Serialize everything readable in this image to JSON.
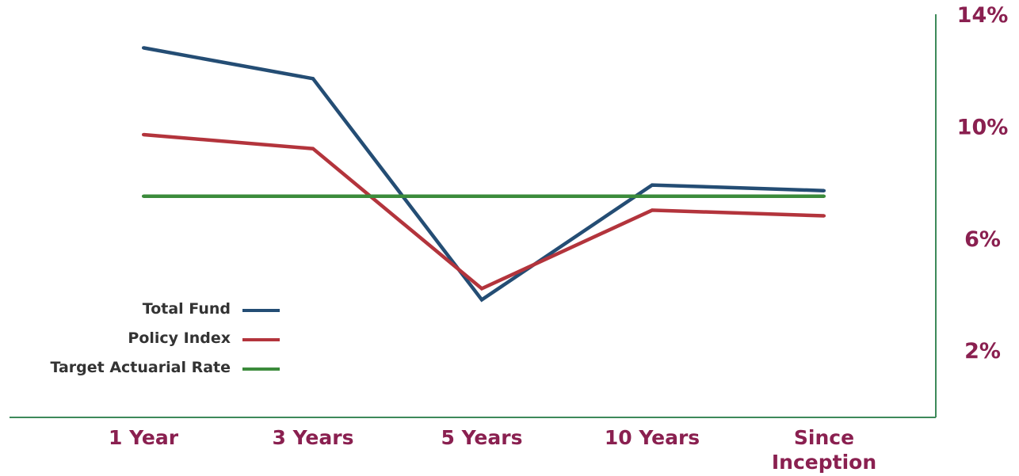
{
  "chart_data": {
    "type": "line",
    "title": "",
    "xlabel": "",
    "ylabel": "",
    "categories": [
      "1 Year",
      "3 Years",
      "5 Years",
      "10 Years",
      "Since Inception"
    ],
    "category_lines": [
      [
        "1 Year"
      ],
      [
        "3 Years"
      ],
      [
        "5 Years"
      ],
      [
        "10 Years"
      ],
      [
        "Since",
        "Inception"
      ]
    ],
    "y_ticks": [
      2,
      6,
      10,
      14
    ],
    "y_tick_labels": [
      "2%",
      "6%",
      "10%",
      "14%"
    ],
    "ylim": [
      -0.4,
      14.0
    ],
    "y_axis_side": "right",
    "grid": false,
    "legend_position": "lower-left",
    "series": [
      {
        "name": "Total Fund",
        "color": "#244d74",
        "values": [
          12.8,
          11.7,
          3.8,
          7.9,
          7.7
        ]
      },
      {
        "name": "Policy Index",
        "color": "#b3343c",
        "values": [
          9.7,
          9.2,
          4.2,
          7.0,
          6.8
        ]
      },
      {
        "name": "Target Actuarial Rate",
        "color": "#3b8b3b",
        "values": [
          7.5,
          7.5,
          7.5,
          7.5,
          7.5
        ]
      }
    ],
    "colors": {
      "axis": "#3d8a5a",
      "label": "#8a2050",
      "legend_text": "#333333"
    }
  }
}
